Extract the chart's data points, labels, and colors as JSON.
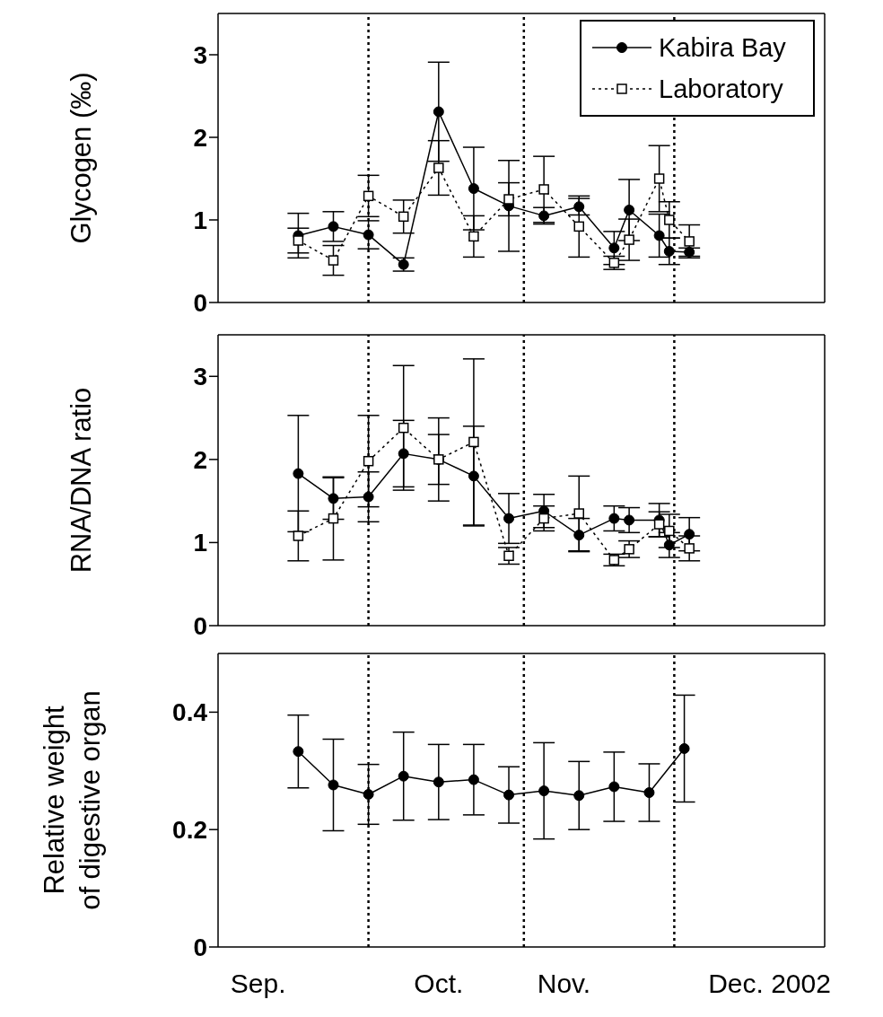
{
  "chart_data": [
    {
      "type": "line",
      "ylabel": "Glycogen (‰)",
      "legend": "top right",
      "tick_labels": "y",
      "x": [
        "2002-09-17",
        "2002-09-24",
        "2002-10-01",
        "2002-10-08",
        "2002-10-15",
        "2002-10-22",
        "2002-10-29",
        "2002-11-05",
        "2002-11-12",
        "2002-11-19",
        "2002-11-22",
        "2002-11-28",
        "2002-11-30",
        "2002-12-04"
      ],
      "xlim": [
        "2002-09-01",
        "2002-12-31"
      ],
      "ylim": [
        0,
        3.5
      ],
      "yticks": [
        0,
        1,
        2,
        3
      ],
      "series": [
        {
          "name": "Kabira Bay",
          "color": "#000000",
          "marker": "circle",
          "line_style": "solid",
          "values": [
            0.81,
            0.92,
            0.82,
            0.46,
            2.31,
            1.38,
            1.17,
            1.05,
            1.16,
            0.66,
            1.12,
            0.81,
            0.62,
            0.61
          ],
          "errors": [
            0.27,
            0.18,
            0.17,
            0.08,
            0.6,
            0.5,
            0.55,
            0.1,
            0.1,
            0.2,
            0.37,
            0.26,
            0.16,
            0.05
          ]
        },
        {
          "name": "Laboratory",
          "color": "#000000",
          "marker": "square",
          "line_style": "dotted",
          "values": [
            0.75,
            0.51,
            1.29,
            1.04,
            1.63,
            0.8,
            1.25,
            1.37,
            0.92,
            0.48,
            0.76,
            1.5,
            1.0,
            0.74
          ],
          "errors": [
            0.15,
            0.18,
            0.25,
            0.2,
            0.33,
            0.25,
            0.2,
            0.4,
            0.37,
            0.08,
            0.25,
            0.4,
            0.22,
            0.2
          ]
        }
      ],
      "ref_lines": [
        {
          "axis": "x",
          "value": "2002-10-01",
          "color": "#000000",
          "line_style": "dotted"
        },
        {
          "axis": "x",
          "value": "2002-11-01",
          "color": "#000000",
          "line_style": "dotted"
        },
        {
          "axis": "x",
          "value": "2002-12-01",
          "color": "#000000",
          "line_style": "dotted"
        }
      ]
    },
    {
      "type": "line",
      "ylabel": "RNA/DNA ratio",
      "tick_labels": "y",
      "x": [
        "2002-09-17",
        "2002-09-24",
        "2002-10-01",
        "2002-10-08",
        "2002-10-15",
        "2002-10-22",
        "2002-10-29",
        "2002-11-05",
        "2002-11-12",
        "2002-11-19",
        "2002-11-22",
        "2002-11-28",
        "2002-11-30",
        "2002-12-04"
      ],
      "xlim": [
        "2002-09-01",
        "2002-12-31"
      ],
      "ylim": [
        0,
        3.5
      ],
      "yticks": [
        0,
        1,
        2,
        3
      ],
      "series": [
        {
          "color": "#000000",
          "marker": "circle",
          "line_style": "solid",
          "values": [
            1.83,
            1.53,
            1.55,
            2.07,
            2.0,
            1.8,
            1.29,
            1.38,
            1.09,
            1.29,
            1.27,
            1.27,
            0.97,
            1.1
          ],
          "errors": [
            0.7,
            0.25,
            0.3,
            0.4,
            0.5,
            0.6,
            0.3,
            0.2,
            0.2,
            0.15,
            0.15,
            0.2,
            0.15,
            0.2
          ]
        },
        {
          "color": "#000000",
          "marker": "square",
          "line_style": "dotted",
          "values": [
            1.08,
            1.29,
            1.98,
            2.38,
            2.0,
            2.21,
            0.84,
            1.29,
            1.35,
            0.79,
            0.92,
            1.22,
            1.14,
            0.93
          ],
          "errors": [
            0.3,
            0.5,
            0.55,
            0.75,
            0.3,
            1.0,
            0.1,
            0.15,
            0.45,
            0.07,
            0.1,
            0.15,
            0.2,
            0.15
          ]
        }
      ],
      "ref_lines": [
        {
          "axis": "x",
          "value": "2002-10-01",
          "color": "#000000",
          "line_style": "dotted"
        },
        {
          "axis": "x",
          "value": "2002-11-01",
          "color": "#000000",
          "line_style": "dotted"
        },
        {
          "axis": "x",
          "value": "2002-12-01",
          "color": "#000000",
          "line_style": "dotted"
        }
      ]
    },
    {
      "type": "line",
      "ylabel": "Relative weight\nof digestive organ",
      "x": [
        "2002-09-17",
        "2002-09-24",
        "2002-10-01",
        "2002-10-08",
        "2002-10-15",
        "2002-10-22",
        "2002-10-29",
        "2002-11-05",
        "2002-11-12",
        "2002-11-19",
        "2002-11-26",
        "2002-12-03"
      ],
      "xlim": [
        "2002-09-01",
        "2002-12-31"
      ],
      "ylim": [
        0,
        0.5
      ],
      "yticks": [
        0,
        0.2,
        0.4
      ],
      "xticks": [
        {
          "value": "2002-09-09",
          "label": "Sep."
        },
        {
          "value": "2002-10-15",
          "label": "Oct."
        },
        {
          "value": "2002-11-09",
          "label": "Nov."
        },
        {
          "value": "2002-12-20",
          "label": "Dec. 2002"
        }
      ],
      "series": [
        {
          "color": "#000000",
          "marker": "circle",
          "line_style": "solid",
          "values": [
            0.333,
            0.276,
            0.26,
            0.291,
            0.281,
            0.285,
            0.259,
            0.266,
            0.258,
            0.273,
            0.263,
            0.338
          ],
          "errors": [
            0.062,
            0.078,
            0.051,
            0.075,
            0.064,
            0.06,
            0.048,
            0.082,
            0.058,
            0.059,
            0.049,
            0.091
          ]
        }
      ],
      "ref_lines": [
        {
          "axis": "x",
          "value": "2002-10-01",
          "color": "#000000",
          "line_style": "dotted"
        },
        {
          "axis": "x",
          "value": "2002-11-01",
          "color": "#000000",
          "line_style": "dotted"
        },
        {
          "axis": "x",
          "value": "2002-12-01",
          "color": "#000000",
          "line_style": "dotted"
        }
      ]
    }
  ]
}
